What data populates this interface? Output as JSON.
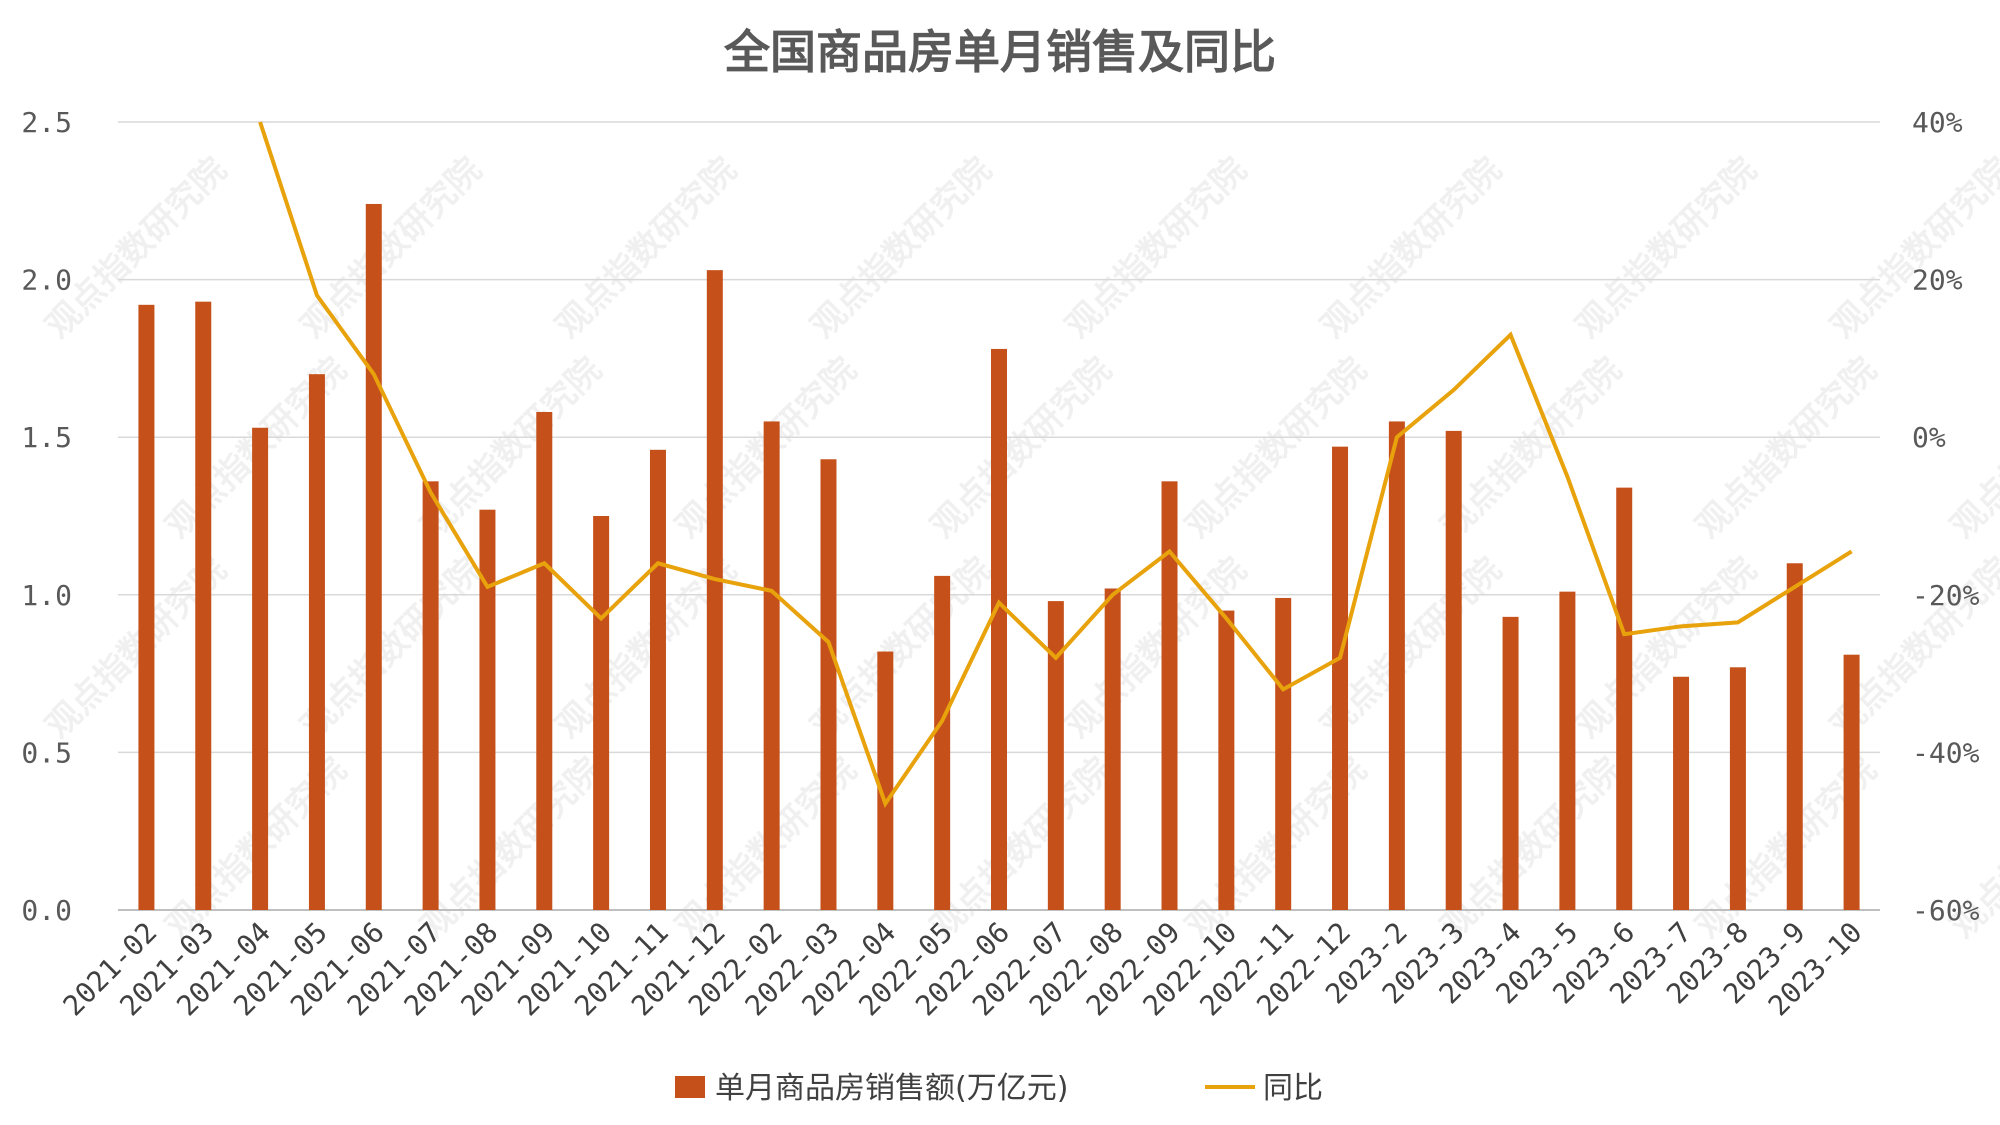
{
  "chart_data": {
    "type": "bar",
    "title": "全国商品房单月销售及同比",
    "categories": [
      "2021-02",
      "2021-03",
      "2021-04",
      "2021-05",
      "2021-06",
      "2021-07",
      "2021-08",
      "2021-09",
      "2021-10",
      "2021-11",
      "2021-12",
      "2022-02",
      "2022-03",
      "2022-04",
      "2022-05",
      "2022-06",
      "2022-07",
      "2022-08",
      "2022-09",
      "2022-10",
      "2022-11",
      "2022-12",
      "2023-2",
      "2023-3",
      "2023-4",
      "2023-5",
      "2023-6",
      "2023-7",
      "2023-8",
      "2023-9",
      "2023-10"
    ],
    "series": [
      {
        "name": "单月商品房销售额(万亿元)",
        "type": "bar",
        "axis": "left",
        "color": "#c5501a",
        "values": [
          1.92,
          1.93,
          1.53,
          1.7,
          2.24,
          1.36,
          1.27,
          1.58,
          1.25,
          1.46,
          2.03,
          1.55,
          1.43,
          0.82,
          1.06,
          1.78,
          0.98,
          1.02,
          1.36,
          0.95,
          0.99,
          1.47,
          1.55,
          1.52,
          0.93,
          1.01,
          1.34,
          0.74,
          0.77,
          1.1,
          0.81
        ]
      },
      {
        "name": "同比",
        "type": "line",
        "axis": "right",
        "color": "#e8a20c",
        "values": [
          null,
          null,
          40,
          18,
          8,
          -7,
          -19,
          -16,
          -23,
          -16,
          -18,
          -19.5,
          -26,
          -46.5,
          -36,
          -21,
          -28,
          -20,
          -14.5,
          -23,
          -32,
          -28,
          0,
          6,
          13,
          -5,
          -25,
          -24,
          -23.5,
          -19,
          -14.5
        ]
      }
    ],
    "y_left": {
      "ylim": [
        0,
        2.5
      ],
      "ticks": [
        "0.0",
        "0.5",
        "1.0",
        "1.5",
        "2.0",
        "2.5"
      ]
    },
    "y_right": {
      "ylim": [
        -60,
        40
      ],
      "ticks": [
        "-60%",
        "-40%",
        "-20%",
        "0%",
        "20%",
        "40%"
      ]
    },
    "grid": true,
    "legend": "bottom",
    "watermark": "观点指数研究院"
  }
}
